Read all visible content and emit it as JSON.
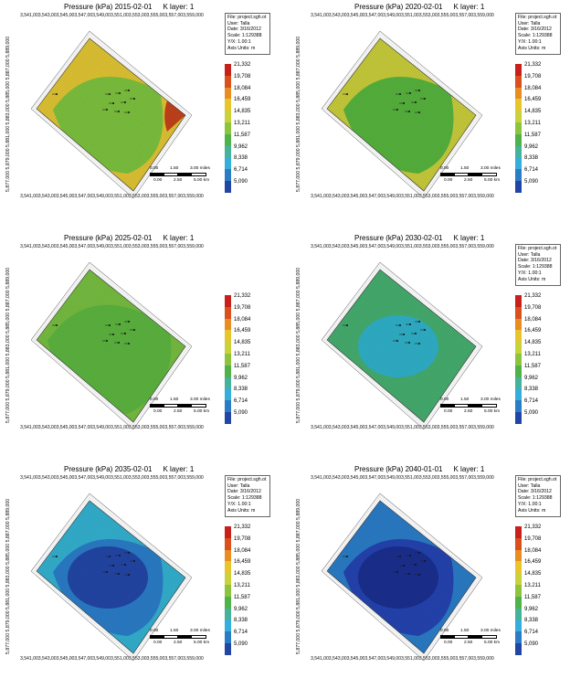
{
  "panels": [
    {
      "title": "Pressure (kPa) 2015-02-01",
      "klayer": "K layer: 1",
      "show_info": true,
      "base_color": "#7cc13e",
      "rings": [
        {
          "name": "outer-ring",
          "color": "#b4c93a"
        },
        {
          "name": "edge-ring",
          "color": "#e0c433"
        }
      ],
      "hotspot": {
        "color": "#c2421b"
      },
      "info_lines": [
        "File: project.sgh.ot",
        "User: Talla",
        "Date: 3/16/2012",
        "Scale: 1:129388",
        "Y/X: 1.00:1",
        "Axis Units: m"
      ]
    },
    {
      "title": "Pressure (kPa) 2020-02-01",
      "klayer": "K layer: 1",
      "show_info": true,
      "base_color": "#56b33d",
      "rings": [
        {
          "name": "outer-ring",
          "color": "#8cc53c"
        },
        {
          "name": "edge-ring",
          "color": "#c8cc3a"
        }
      ],
      "hotspot": null,
      "info_lines": [
        "File: project.sgh.ot",
        "User: Talla",
        "Date: 3/16/2012",
        "Scale: 1:129388",
        "Y/X: 1.00:1",
        "Axis Units: m"
      ]
    },
    {
      "title": "Pressure (kPa) 2025-02-01",
      "klayer": "K layer: 1",
      "show_info": false,
      "base_color": "#5cb43f",
      "rings": [
        {
          "name": "outer-ring",
          "color": "#76bd40"
        }
      ],
      "hotspot": null,
      "info_lines": []
    },
    {
      "title": "Pressure (kPa) 2030-02-01",
      "klayer": "K layer: 1",
      "show_info": true,
      "base_color": "#45ad6e",
      "rings": [
        {
          "name": "center-ring",
          "color": "#2fb0c8"
        }
      ],
      "hotspot": null,
      "info_lines": [
        "File: project.sgh.ot",
        "User: Talla",
        "Date: 3/16/2012",
        "Scale: 1:129388",
        "Y/X: 1.00:1",
        "Axis Units: m"
      ]
    },
    {
      "title": "Pressure (kPa) 2035-02-01",
      "klayer": "K layer: 1",
      "show_info": true,
      "base_color": "#2a7cc7",
      "rings": [
        {
          "name": "edge-ring",
          "color": "#33b0cf"
        },
        {
          "name": "center-ring",
          "color": "#2246a6"
        }
      ],
      "hotspot": null,
      "info_lines": [
        "File: project.sgh.ot",
        "User: Talla",
        "Date: 3/16/2012",
        "Scale: 1:129388",
        "Y/X: 1.00:1",
        "Axis Units: m"
      ]
    },
    {
      "title": "Pressure (kPa) 2040-01-01",
      "klayer": "K layer: 1",
      "show_info": true,
      "base_color": "#2443b0",
      "rings": [
        {
          "name": "edge-ring",
          "color": "#2a7cc7"
        },
        {
          "name": "center-ring",
          "color": "#1a2f8f"
        }
      ],
      "hotspot": null,
      "info_lines": [
        "File: project.sgh.ot",
        "User: Talla",
        "Date: 3/16/2012",
        "Scale: 1:129388",
        "Y/X: 1.00:1",
        "Axis Units: m"
      ]
    }
  ],
  "x_tick_text": "3,541,003,543,003,545,003,547,003,549,003,551,003,553,003,555,003,557,003,559,000",
  "y_tick_text": "5,877,000 5,879,000 5,881,000 5,883,000 5,885,000 5,887,000 5,889,000 5,891,000 5,893,000",
  "legend": {
    "levels": [
      "21,332",
      "19,708",
      "18,084",
      "16,459",
      "14,835",
      "13,211",
      "11,587",
      "9,962",
      "8,338",
      "6,714",
      "5,090"
    ],
    "colors": [
      "#c8201b",
      "#d9501d",
      "#e98c22",
      "#e8c52a",
      "#c9d23a",
      "#8cc53c",
      "#4fb34a",
      "#45b29a",
      "#35aedb",
      "#2a7cc7",
      "#2246a6"
    ]
  },
  "scale_bar": {
    "miles": [
      "0.00",
      "1.50",
      "3.00 miles"
    ],
    "km": [
      "0.00",
      "2.50",
      "5.00 km"
    ]
  }
}
